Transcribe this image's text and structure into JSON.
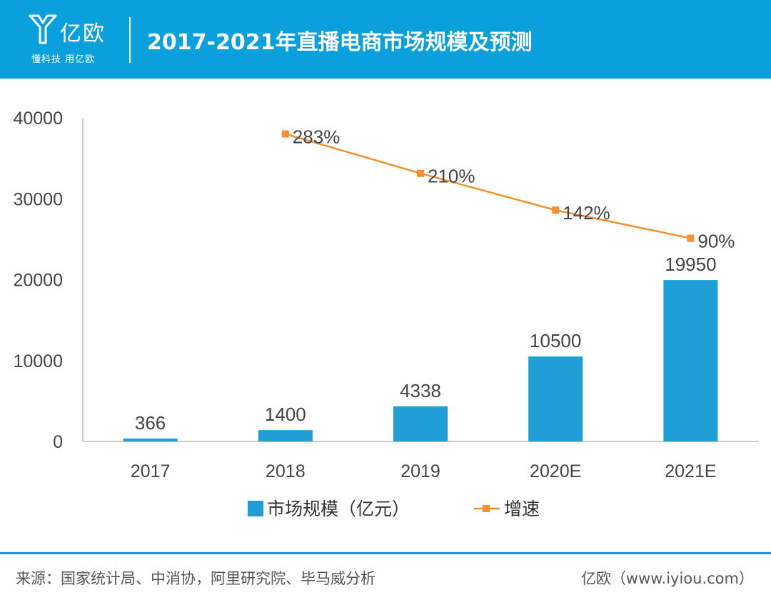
{
  "header": {
    "logo_text": "亿欧",
    "slogan": "懂科技 用亿欧",
    "title": "2017-2021年直播电商市场规模及预测"
  },
  "colors": {
    "header_bg": "#0aa0dc",
    "bar": "#1f9fd6",
    "line": "#f4902f",
    "axis_text": "#444444"
  },
  "chart_data": {
    "type": "bar",
    "categories": [
      "2017",
      "2018",
      "2019",
      "2020E",
      "2021E"
    ],
    "series": [
      {
        "name": "市场规模（亿元）",
        "type": "bar",
        "values": [
          366,
          1400,
          4338,
          10500,
          19950
        ],
        "labels": [
          "366",
          "1400",
          "4338",
          "10500",
          "19950"
        ]
      },
      {
        "name": "增速",
        "type": "line",
        "values": [
          null,
          283,
          210,
          142,
          90
        ],
        "labels": [
          null,
          "283%",
          "210%",
          "142%",
          "90%"
        ]
      }
    ],
    "yticks": [
      0,
      10000,
      20000,
      30000,
      40000
    ],
    "ylim": [
      0,
      40000
    ],
    "title": "2017-2021年直播电商市场规模及预测",
    "legend": [
      "市场规模（亿元）",
      "增速"
    ],
    "legend_position": "bottom"
  },
  "footer": {
    "source": "来源：国家统计局、中消协，阿里研究院、毕马威分析",
    "brand": "亿欧（www.iyiou.com）"
  }
}
